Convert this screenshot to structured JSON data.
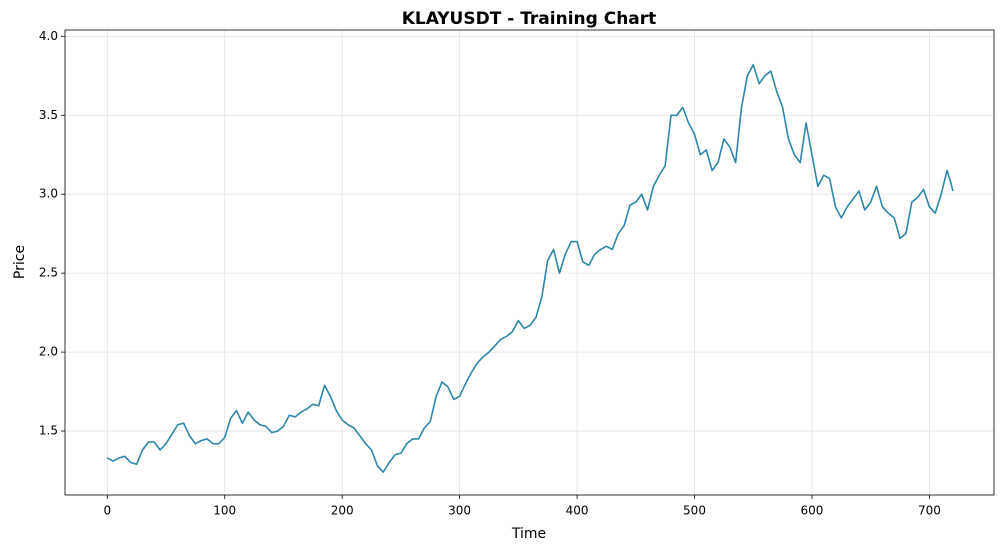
{
  "chart_data": {
    "type": "line",
    "title": "KLAYUSDT - Training Chart",
    "x_label": "Time",
    "y_label": "Price",
    "x": [
      0,
      5,
      10,
      15,
      20,
      25,
      30,
      35,
      40,
      45,
      50,
      55,
      60,
      65,
      70,
      75,
      80,
      85,
      90,
      95,
      100,
      105,
      110,
      115,
      120,
      125,
      130,
      135,
      140,
      145,
      150,
      155,
      160,
      165,
      170,
      175,
      180,
      185,
      190,
      195,
      200,
      205,
      210,
      215,
      220,
      225,
      230,
      235,
      240,
      245,
      250,
      255,
      260,
      265,
      270,
      275,
      280,
      285,
      290,
      295,
      300,
      305,
      310,
      315,
      320,
      325,
      330,
      335,
      340,
      345,
      350,
      355,
      360,
      365,
      370,
      375,
      380,
      385,
      390,
      395,
      400,
      405,
      410,
      415,
      420,
      425,
      430,
      435,
      440,
      445,
      450,
      455,
      460,
      465,
      470,
      475,
      480,
      485,
      490,
      495,
      500,
      505,
      510,
      515,
      520,
      525,
      530,
      535,
      540,
      545,
      550,
      555,
      560,
      565,
      570,
      575,
      580,
      585,
      590,
      595,
      600,
      605,
      610,
      615,
      620,
      625,
      630,
      635,
      640,
      645,
      650,
      655,
      660,
      665,
      670,
      675,
      680,
      685,
      690,
      695,
      700,
      705,
      710,
      715,
      718,
      720
    ],
    "series": [
      {
        "name": "Price",
        "color": "#2e86ab",
        "values": [
          1.33,
          1.31,
          1.33,
          1.34,
          1.3,
          1.29,
          1.38,
          1.43,
          1.43,
          1.38,
          1.42,
          1.48,
          1.54,
          1.55,
          1.47,
          1.42,
          1.44,
          1.45,
          1.42,
          1.42,
          1.46,
          1.58,
          1.63,
          1.55,
          1.62,
          1.57,
          1.54,
          1.53,
          1.49,
          1.5,
          1.53,
          1.6,
          1.59,
          1.62,
          1.64,
          1.67,
          1.66,
          1.79,
          1.72,
          1.63,
          1.57,
          1.54,
          1.52,
          1.47,
          1.42,
          1.38,
          1.28,
          1.24,
          1.3,
          1.35,
          1.36,
          1.42,
          1.45,
          1.45,
          1.52,
          1.56,
          1.72,
          1.81,
          1.78,
          1.7,
          1.72,
          1.8,
          1.87,
          1.93,
          1.97,
          2.0,
          2.04,
          2.08,
          2.1,
          2.13,
          2.2,
          2.15,
          2.17,
          2.22,
          2.35,
          2.58,
          2.65,
          2.5,
          2.62,
          2.7,
          2.7,
          2.57,
          2.55,
          2.62,
          2.65,
          2.67,
          2.65,
          2.75,
          2.8,
          2.93,
          2.95,
          3.0,
          2.9,
          3.05,
          3.12,
          3.18,
          3.5,
          3.5,
          3.55,
          3.45,
          3.38,
          3.25,
          3.28,
          3.15,
          3.2,
          3.35,
          3.3,
          3.2,
          3.55,
          3.75,
          3.82,
          3.7,
          3.75,
          3.78,
          3.65,
          3.55,
          3.35,
          3.25,
          3.2,
          3.45,
          3.25,
          3.05,
          3.12,
          3.1,
          2.92,
          2.85,
          2.92,
          2.97,
          3.02,
          2.9,
          2.95,
          3.05,
          2.92,
          2.88,
          2.85,
          2.72,
          2.75,
          2.95,
          2.98,
          3.03,
          2.92,
          2.88,
          3.0,
          3.15,
          3.08,
          3.02
        ]
      }
    ],
    "xlim": [
      -36,
      755
    ],
    "ylim": [
      1.095,
      4.04
    ],
    "xticks": [
      0,
      100,
      200,
      300,
      400,
      500,
      600,
      700
    ],
    "yticks": [
      {
        "value": 1.5,
        "label": "1.5"
      },
      {
        "value": 2.0,
        "label": "2.0"
      },
      {
        "value": 2.5,
        "label": "2.5"
      },
      {
        "value": 3.0,
        "label": "3.0"
      },
      {
        "value": 3.5,
        "label": "3.5"
      },
      {
        "value": 4.0,
        "label": "4.0"
      }
    ],
    "grid": true
  }
}
